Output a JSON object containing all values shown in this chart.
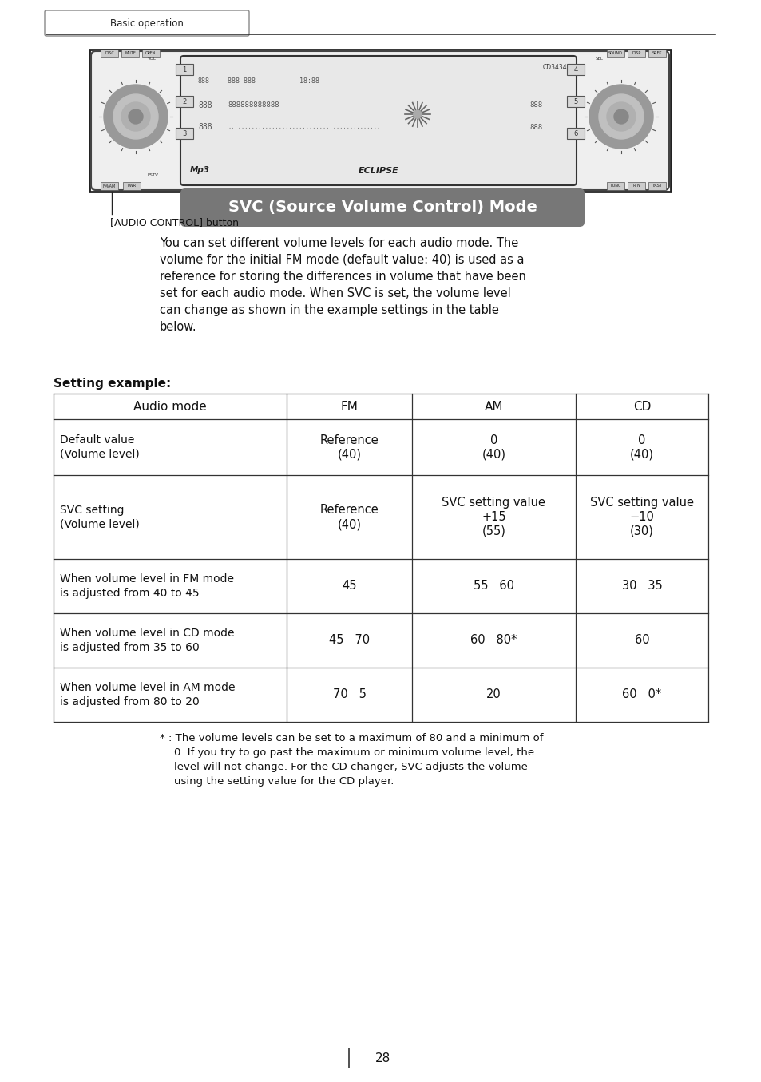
{
  "page_bg": "#ffffff",
  "header_tab_text": "Basic operation",
  "header_tab_border": "#888888",
  "header_line_color": "#333333",
  "section_title": "SVC (Source Volume Control) Mode",
  "section_title_bg": "#777777",
  "section_title_color": "#ffffff",
  "body_text_lines": [
    "You can set different volume levels for each audio mode. The",
    "volume for the initial FM mode (default value: 40) is used as a",
    "reference for storing the differences in volume that have been",
    "set for each audio mode. When SVC is set, the volume level",
    "can change as shown in the example settings in the table",
    "below."
  ],
  "setting_example_label": "Setting example:",
  "table_header": [
    "Audio mode",
    "FM",
    "AM",
    "CD"
  ],
  "table_rows": [
    [
      "Default value\n(Volume level)",
      "Reference\n(40)",
      "0\n(40)",
      "0\n(40)"
    ],
    [
      "SVC setting\n(Volume level)",
      "Reference\n(40)",
      "SVC setting value\n+15\n(55)",
      "SVC setting value\n−10\n(30)"
    ],
    [
      "When volume level in FM mode\nis adjusted from 40 to 45",
      "45",
      "55   60",
      "30   35"
    ],
    [
      "When volume level in CD mode\nis adjusted from 35 to 60",
      "45   70",
      "60   80*",
      "60"
    ],
    [
      "When volume level in AM mode\nis adjusted from 80 to 20",
      "70   5",
      "20",
      "60   0*"
    ]
  ],
  "footnote_lines": [
    "* : The volume levels can be set to a maximum of 80 and a minimum of",
    "0. If you try to go past the maximum or minimum volume level, the",
    "level will not change. For the CD changer, SVC adjusts the volume",
    "using the setting value for the CD player."
  ],
  "page_number": "28",
  "audio_control_label": "[AUDIO CONTROL] button"
}
